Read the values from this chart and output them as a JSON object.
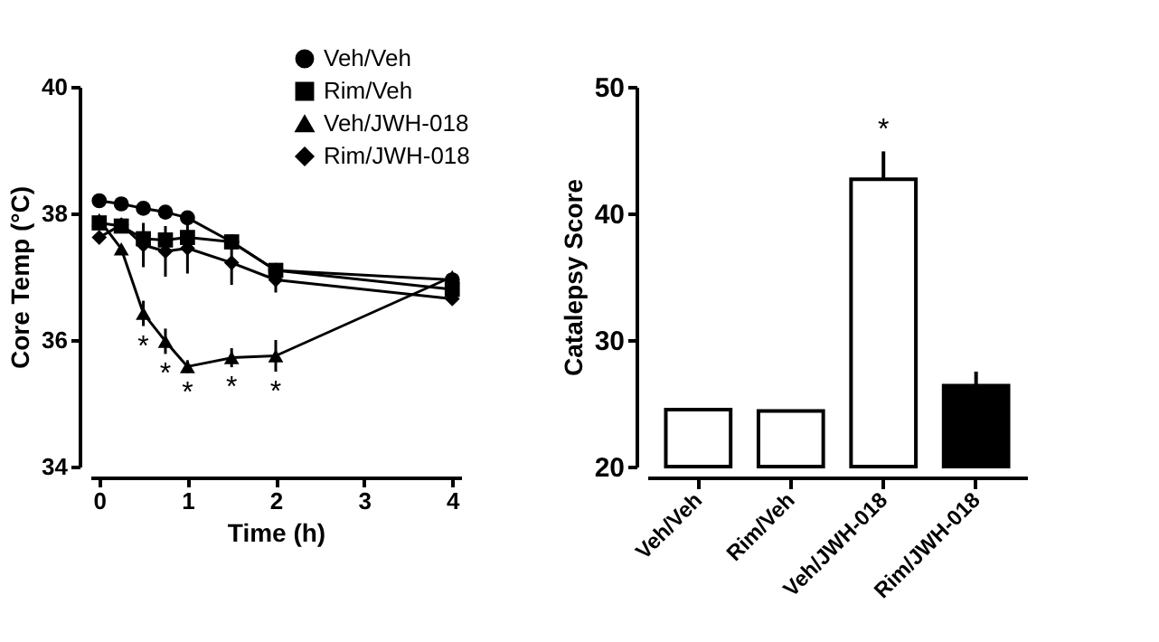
{
  "chart_data": [
    {
      "type": "line",
      "xlabel": "Time (h)",
      "ylabel": "Core Temp (°C)",
      "xlim": [
        -0.1,
        4.1
      ],
      "xticks": [
        0,
        1,
        2,
        3,
        4
      ],
      "ylim": [
        34,
        40
      ],
      "yticks": [
        34,
        36,
        38,
        40
      ],
      "legend": "top right",
      "x": [
        0,
        0.25,
        0.5,
        0.75,
        1,
        1.5,
        2,
        4
      ],
      "series": [
        {
          "name": "Veh/Veh",
          "color": "#000000",
          "marker": "circle",
          "values": [
            38.2,
            38.15,
            38.08,
            38.02,
            37.93,
            37.55,
            37.1,
            36.95
          ]
        },
        {
          "name": "Rim/Veh",
          "color": "#000000",
          "marker": "square",
          "values": [
            37.85,
            37.8,
            37.6,
            37.58,
            37.62,
            37.55,
            37.1,
            36.8
          ]
        },
        {
          "name": "Veh/JWH-018",
          "color": "#000000",
          "marker": "triangle",
          "values": [
            37.9,
            37.44,
            36.42,
            35.98,
            35.58,
            35.72,
            35.75,
            37.0
          ],
          "errors": [
            null,
            null,
            0.2,
            0.2,
            0.1,
            0.15,
            0.25,
            null
          ]
        },
        {
          "name": "Rim/JWH-018",
          "color": "#000000",
          "marker": "diamond",
          "values": [
            37.62,
            37.82,
            37.5,
            37.4,
            37.45,
            37.22,
            36.95,
            36.65
          ],
          "errors": [
            null,
            null,
            0.35,
            0.4,
            0.4,
            0.35,
            0.2,
            null
          ]
        }
      ],
      "annotations": [
        {
          "text": "*",
          "x": 0.5,
          "y": 36.22
        },
        {
          "text": "*",
          "x": 0.75,
          "y": 35.78
        },
        {
          "text": "*",
          "x": 1,
          "y": 35.48
        },
        {
          "text": "*",
          "x": 1.5,
          "y": 35.57
        },
        {
          "text": "*",
          "x": 2,
          "y": 35.5
        }
      ]
    },
    {
      "type": "bar",
      "ylabel": "Catalepsy Score",
      "categories": [
        "Veh/Veh",
        "Rim/Veh",
        "Veh/JWH-018",
        "Rim/JWH-018"
      ],
      "values": [
        24.5,
        24.4,
        42.7,
        26.4
      ],
      "colors": [
        "#ffffff",
        "#ffffff",
        "#ffffff",
        "#000000"
      ],
      "errors": [
        null,
        null,
        [
          42.7,
          44.9
        ],
        [
          26.4,
          27.5
        ]
      ],
      "ylim": [
        20,
        50
      ],
      "yticks": [
        20,
        30,
        40,
        50
      ],
      "annotations": [
        {
          "text": "*",
          "x": "Veh/JWH-018",
          "y": 44.9
        }
      ]
    }
  ]
}
